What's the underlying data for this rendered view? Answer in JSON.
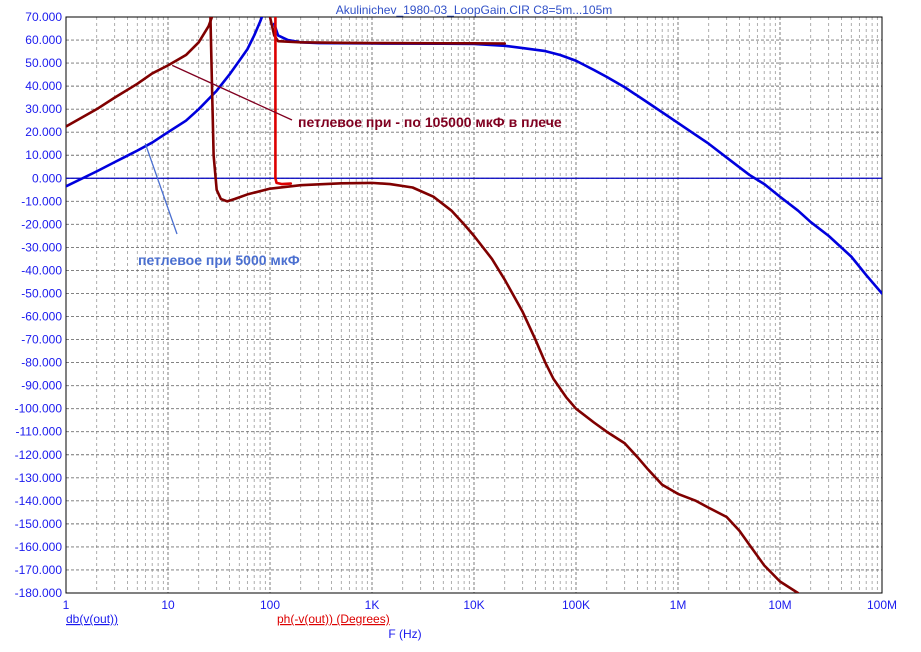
{
  "chart_data": {
    "type": "line",
    "title": "Akulinichev_1980-03_LoopGain.CIR C8=5m...105m",
    "xscale": "log",
    "xlim": [
      1,
      100000000
    ],
    "ylim": [
      -180,
      70
    ],
    "grid": true,
    "xlabel": "F (Hz)",
    "y_label_magnitude": "db(v(out))",
    "y_label_phase": "ph(-v(out)) (Degrees)",
    "x_ticks": [
      {
        "value": 1,
        "label": "1"
      },
      {
        "value": 10,
        "label": "10"
      },
      {
        "value": 100,
        "label": "100"
      },
      {
        "value": 1000,
        "label": "1K"
      },
      {
        "value": 10000,
        "label": "10K"
      },
      {
        "value": 100000,
        "label": "100K"
      },
      {
        "value": 1000000,
        "label": "1M"
      },
      {
        "value": 10000000,
        "label": "10M"
      },
      {
        "value": 100000000,
        "label": "100M"
      }
    ],
    "y_ticks": [
      {
        "value": 70,
        "label": "70.000"
      },
      {
        "value": 60,
        "label": "60.000"
      },
      {
        "value": 50,
        "label": "50.000"
      },
      {
        "value": 40,
        "label": "40.000"
      },
      {
        "value": 30,
        "label": "30.000"
      },
      {
        "value": 20,
        "label": "20.000"
      },
      {
        "value": 10,
        "label": "10.000"
      },
      {
        "value": 0,
        "label": "0.000"
      },
      {
        "value": -10,
        "label": "-10.000"
      },
      {
        "value": -20,
        "label": "-20.000"
      },
      {
        "value": -30,
        "label": "-30.000"
      },
      {
        "value": -40,
        "label": "-40.000"
      },
      {
        "value": -50,
        "label": "-50.000"
      },
      {
        "value": -60,
        "label": "-60.000"
      },
      {
        "value": -70,
        "label": "-70.000"
      },
      {
        "value": -80,
        "label": "-80.000"
      },
      {
        "value": -90,
        "label": "-90.000"
      },
      {
        "value": -100,
        "label": "-100.000"
      },
      {
        "value": -110,
        "label": "-110.000"
      },
      {
        "value": -120,
        "label": "-120.000"
      },
      {
        "value": -130,
        "label": "-130.000"
      },
      {
        "value": -140,
        "label": "-140.000"
      },
      {
        "value": -150,
        "label": "-150.000"
      },
      {
        "value": -160,
        "label": "-160.000"
      },
      {
        "value": -170,
        "label": "-170.000"
      },
      {
        "value": -180,
        "label": "-180.000"
      }
    ],
    "series": [
      {
        "color": "#0000dd",
        "points": [
          [
            1,
            -3.5
          ],
          [
            2,
            3
          ],
          [
            3,
            7
          ],
          [
            5,
            12
          ],
          [
            7,
            15.5
          ],
          [
            10,
            20
          ],
          [
            15,
            25
          ],
          [
            20,
            30
          ],
          [
            30,
            38
          ],
          [
            40,
            45
          ],
          [
            50,
            51
          ],
          [
            60,
            56
          ],
          [
            70,
            62
          ],
          [
            80,
            68
          ],
          [
            85,
            71
          ],
          [
            100,
            78
          ]
        ]
      },
      {
        "color": "#0000dd",
        "points": [
          [
            110,
            67
          ],
          [
            120,
            62
          ],
          [
            150,
            60
          ],
          [
            200,
            59
          ],
          [
            300,
            58.7
          ],
          [
            1000,
            58.5
          ],
          [
            5000,
            58.4
          ],
          [
            10000,
            58.3
          ],
          [
            20000,
            57.5
          ],
          [
            30000,
            56.5
          ],
          [
            50000,
            55.2
          ],
          [
            70000,
            53.5
          ],
          [
            100000,
            51
          ],
          [
            150000,
            47
          ],
          [
            200000,
            44
          ],
          [
            300000,
            39.5
          ],
          [
            500000,
            33
          ],
          [
            1000000,
            24
          ],
          [
            2000000,
            15
          ],
          [
            3000000,
            9
          ],
          [
            5000000,
            1.5
          ],
          [
            7000000,
            -2.5
          ],
          [
            10000000,
            -8
          ],
          [
            15000000,
            -14
          ],
          [
            20000000,
            -19
          ],
          [
            30000000,
            -25
          ],
          [
            50000000,
            -34
          ],
          [
            70000000,
            -42
          ],
          [
            100000000,
            -50
          ]
        ]
      },
      {
        "color": "#800000",
        "points": [
          [
            1,
            22.5
          ],
          [
            2,
            30
          ],
          [
            3,
            35
          ],
          [
            5,
            41
          ],
          [
            7,
            45.5
          ],
          [
            10,
            49
          ],
          [
            12,
            51
          ],
          [
            15,
            53.5
          ],
          [
            20,
            59
          ],
          [
            25,
            66
          ],
          [
            28,
            72
          ]
        ]
      },
      {
        "color": "#800000",
        "points": [
          [
            26,
            72
          ],
          [
            27,
            40
          ],
          [
            28,
            10
          ],
          [
            30,
            -5
          ],
          [
            33,
            -9
          ],
          [
            38,
            -10
          ],
          [
            45,
            -9
          ],
          [
            60,
            -7
          ],
          [
            100,
            -4.5
          ],
          [
            200,
            -3
          ],
          [
            500,
            -2.2
          ],
          [
            1000,
            -2
          ],
          [
            1500,
            -2.5
          ],
          [
            2500,
            -4
          ],
          [
            4000,
            -8
          ],
          [
            6000,
            -14
          ],
          [
            8000,
            -20
          ],
          [
            10000,
            -25
          ],
          [
            15000,
            -35
          ],
          [
            20000,
            -44
          ],
          [
            30000,
            -58
          ],
          [
            40000,
            -70
          ],
          [
            50000,
            -80
          ],
          [
            60000,
            -87
          ],
          [
            80000,
            -95
          ],
          [
            100000,
            -100
          ],
          [
            150000,
            -106
          ],
          [
            200000,
            -110
          ],
          [
            300000,
            -115
          ],
          [
            400000,
            -121
          ],
          [
            500000,
            -126
          ],
          [
            700000,
            -133
          ],
          [
            1000000,
            -137
          ],
          [
            1500000,
            -140
          ],
          [
            2000000,
            -143
          ],
          [
            3000000,
            -147
          ],
          [
            4000000,
            -153
          ],
          [
            5000000,
            -159
          ],
          [
            7000000,
            -168
          ],
          [
            10000000,
            -175
          ],
          [
            15000000,
            -180
          ]
        ]
      },
      {
        "color": "#800000",
        "points": [
          [
            100,
            70
          ],
          [
            110,
            62
          ],
          [
            120,
            59.5
          ],
          [
            200,
            59
          ],
          [
            500,
            58.8
          ],
          [
            1000,
            58.7
          ],
          [
            5000,
            58.6
          ],
          [
            10000,
            58.6
          ],
          [
            20000,
            58.5
          ]
        ]
      },
      {
        "color": "#dd0000",
        "points": [
          [
            113,
            70
          ],
          [
            113,
            50
          ],
          [
            113,
            20
          ],
          [
            113,
            0
          ],
          [
            116,
            -2
          ],
          [
            130,
            -2.5
          ],
          [
            160,
            -2.3
          ]
        ]
      }
    ],
    "zero_line": {
      "value": 0,
      "color": "#0000c0"
    },
    "annotations": [
      {
        "text": "петлевое при - по 105000 мкФ в плече",
        "color": "#800020",
        "arrow_to": [
          11,
          49
        ],
        "arrow_from": [
          10000000000,
          0
        ]
      },
      {
        "text": "петлевое при 5000 мкФ",
        "color": "#4a6fd0",
        "arrow_to": [
          6,
          15
        ],
        "arrow_from": [
          0,
          0
        ]
      }
    ]
  }
}
